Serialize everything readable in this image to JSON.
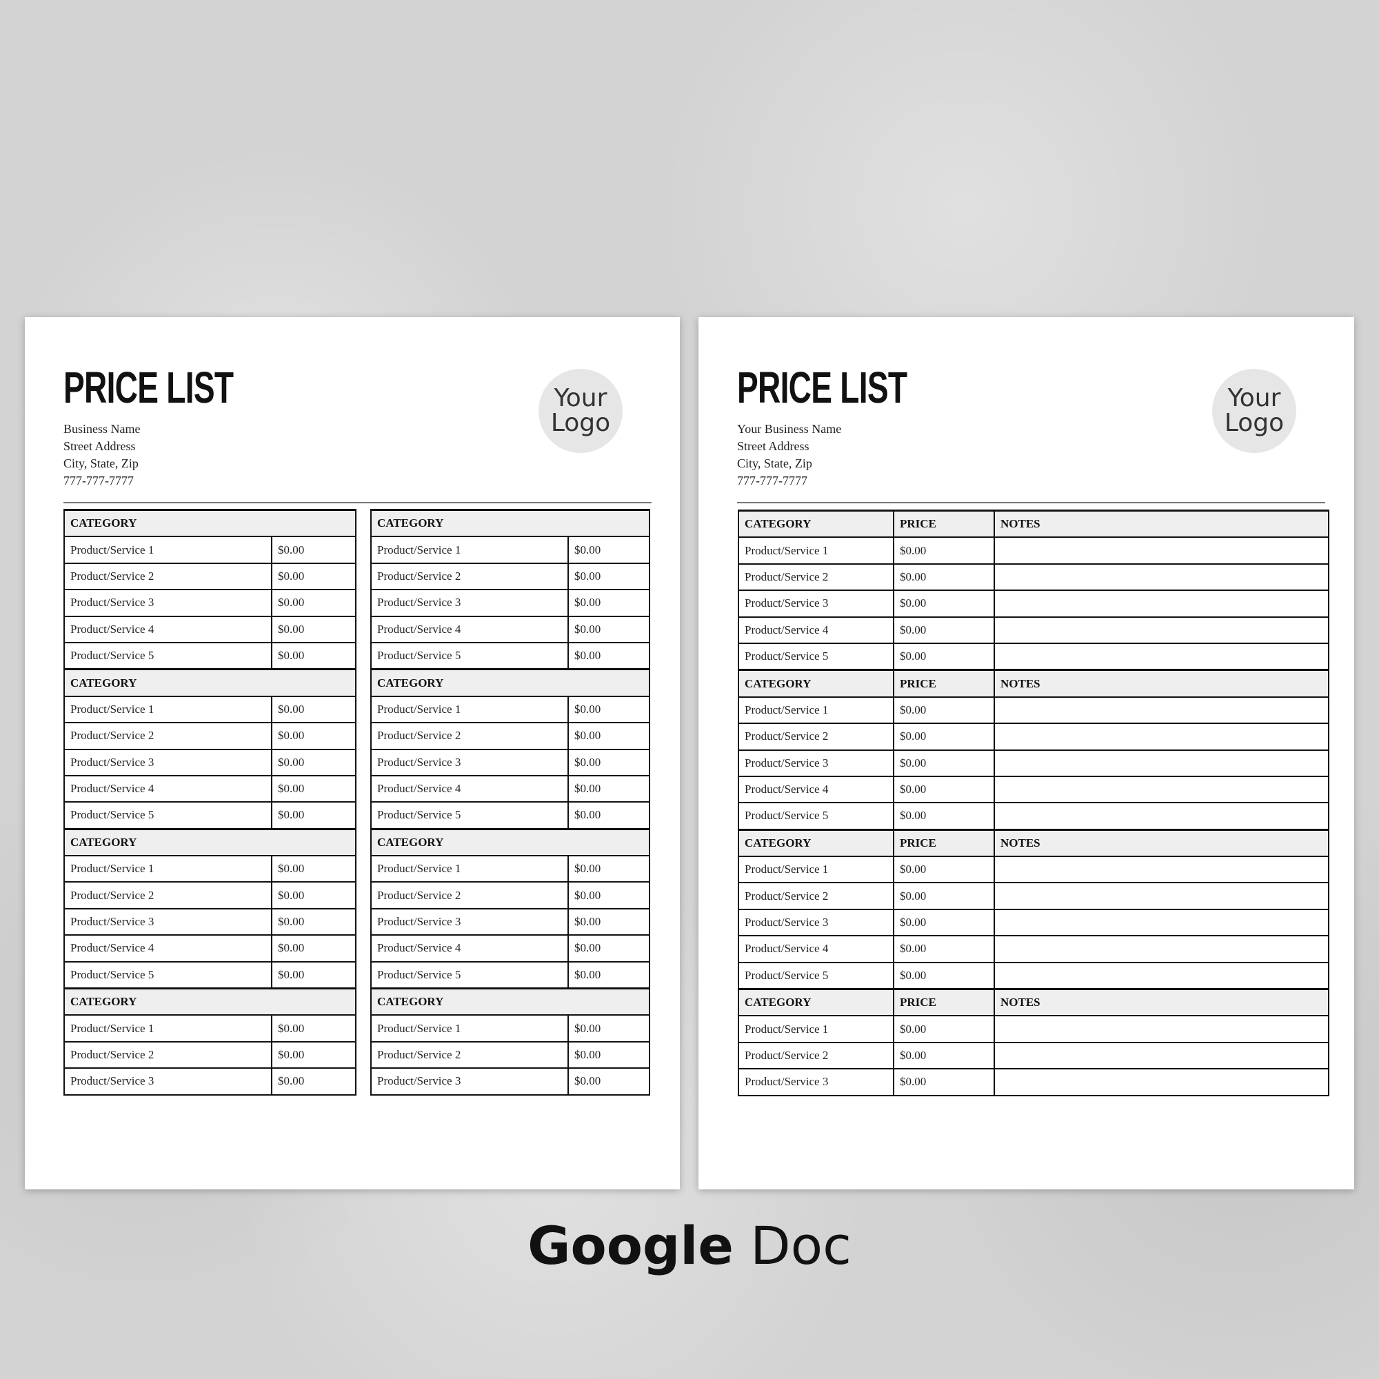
{
  "pages": [
    {
      "title": "PRICE LIST",
      "address": [
        "Business Name",
        "Street Address",
        "City, State, Zip",
        "777-777-7777"
      ],
      "logo": [
        "Your",
        "Logo"
      ],
      "tables": [
        {
          "groups": [
            {
              "header": [
                "CATEGORY"
              ],
              "rows": [
                [
                  "Product/Service 1",
                  "$0.00"
                ],
                [
                  "Product/Service 2",
                  "$0.00"
                ],
                [
                  "Product/Service 3",
                  "$0.00"
                ],
                [
                  "Product/Service 4",
                  "$0.00"
                ],
                [
                  "Product/Service 5",
                  "$0.00"
                ]
              ]
            },
            {
              "header": [
                "CATEGORY"
              ],
              "rows": [
                [
                  "Product/Service 1",
                  "$0.00"
                ],
                [
                  "Product/Service 2",
                  "$0.00"
                ],
                [
                  "Product/Service 3",
                  "$0.00"
                ],
                [
                  "Product/Service 4",
                  "$0.00"
                ],
                [
                  "Product/Service 5",
                  "$0.00"
                ]
              ]
            },
            {
              "header": [
                "CATEGORY"
              ],
              "rows": [
                [
                  "Product/Service 1",
                  "$0.00"
                ],
                [
                  "Product/Service 2",
                  "$0.00"
                ],
                [
                  "Product/Service 3",
                  "$0.00"
                ],
                [
                  "Product/Service 4",
                  "$0.00"
                ],
                [
                  "Product/Service 5",
                  "$0.00"
                ]
              ]
            },
            {
              "header": [
                "CATEGORY"
              ],
              "rows": [
                [
                  "Product/Service 1",
                  "$0.00"
                ],
                [
                  "Product/Service 2",
                  "$0.00"
                ],
                [
                  "Product/Service 3",
                  "$0.00"
                ]
              ]
            }
          ]
        },
        {
          "groups": [
            {
              "header": [
                "CATEGORY"
              ],
              "rows": [
                [
                  "Product/Service 1",
                  "$0.00"
                ],
                [
                  "Product/Service 2",
                  "$0.00"
                ],
                [
                  "Product/Service 3",
                  "$0.00"
                ],
                [
                  "Product/Service 4",
                  "$0.00"
                ],
                [
                  "Product/Service 5",
                  "$0.00"
                ]
              ]
            },
            {
              "header": [
                "CATEGORY"
              ],
              "rows": [
                [
                  "Product/Service 1",
                  "$0.00"
                ],
                [
                  "Product/Service 2",
                  "$0.00"
                ],
                [
                  "Product/Service 3",
                  "$0.00"
                ],
                [
                  "Product/Service 4",
                  "$0.00"
                ],
                [
                  "Product/Service 5",
                  "$0.00"
                ]
              ]
            },
            {
              "header": [
                "CATEGORY"
              ],
              "rows": [
                [
                  "Product/Service 1",
                  "$0.00"
                ],
                [
                  "Product/Service 2",
                  "$0.00"
                ],
                [
                  "Product/Service 3",
                  "$0.00"
                ],
                [
                  "Product/Service 4",
                  "$0.00"
                ],
                [
                  "Product/Service 5",
                  "$0.00"
                ]
              ]
            },
            {
              "header": [
                "CATEGORY"
              ],
              "rows": [
                [
                  "Product/Service 1",
                  "$0.00"
                ],
                [
                  "Product/Service 2",
                  "$0.00"
                ],
                [
                  "Product/Service 3",
                  "$0.00"
                ]
              ]
            }
          ]
        }
      ]
    },
    {
      "title": "PRICE LIST",
      "address": [
        "Your Business Name",
        "Street Address",
        "City, State, Zip",
        "777-777-7777"
      ],
      "logo": [
        "Your",
        "Logo"
      ],
      "tables": [
        {
          "groups": [
            {
              "header": [
                "CATEGORY",
                "PRICE",
                "NOTES"
              ],
              "rows": [
                [
                  "Product/Service 1",
                  "$0.00",
                  ""
                ],
                [
                  "Product/Service 2",
                  "$0.00",
                  ""
                ],
                [
                  "Product/Service 3",
                  "$0.00",
                  ""
                ],
                [
                  "Product/Service 4",
                  "$0.00",
                  ""
                ],
                [
                  "Product/Service 5",
                  "$0.00",
                  ""
                ]
              ]
            },
            {
              "header": [
                "CATEGORY",
                "PRICE",
                "NOTES"
              ],
              "rows": [
                [
                  "Product/Service 1",
                  "$0.00",
                  ""
                ],
                [
                  "Product/Service 2",
                  "$0.00",
                  ""
                ],
                [
                  "Product/Service 3",
                  "$0.00",
                  ""
                ],
                [
                  "Product/Service 4",
                  "$0.00",
                  ""
                ],
                [
                  "Product/Service 5",
                  "$0.00",
                  ""
                ]
              ]
            },
            {
              "header": [
                "CATEGORY",
                "PRICE",
                "NOTES"
              ],
              "rows": [
                [
                  "Product/Service 1",
                  "$0.00",
                  ""
                ],
                [
                  "Product/Service 2",
                  "$0.00",
                  ""
                ],
                [
                  "Product/Service 3",
                  "$0.00",
                  ""
                ],
                [
                  "Product/Service 4",
                  "$0.00",
                  ""
                ],
                [
                  "Product/Service 5",
                  "$0.00",
                  ""
                ]
              ]
            },
            {
              "header": [
                "CATEGORY",
                "PRICE",
                "NOTES"
              ],
              "rows": [
                [
                  "Product/Service 1",
                  "$0.00",
                  ""
                ],
                [
                  "Product/Service 2",
                  "$0.00",
                  ""
                ],
                [
                  "Product/Service 3",
                  "$0.00",
                  ""
                ]
              ]
            }
          ]
        }
      ]
    }
  ],
  "caption": {
    "bold": "Google",
    "regular": "Doc"
  }
}
